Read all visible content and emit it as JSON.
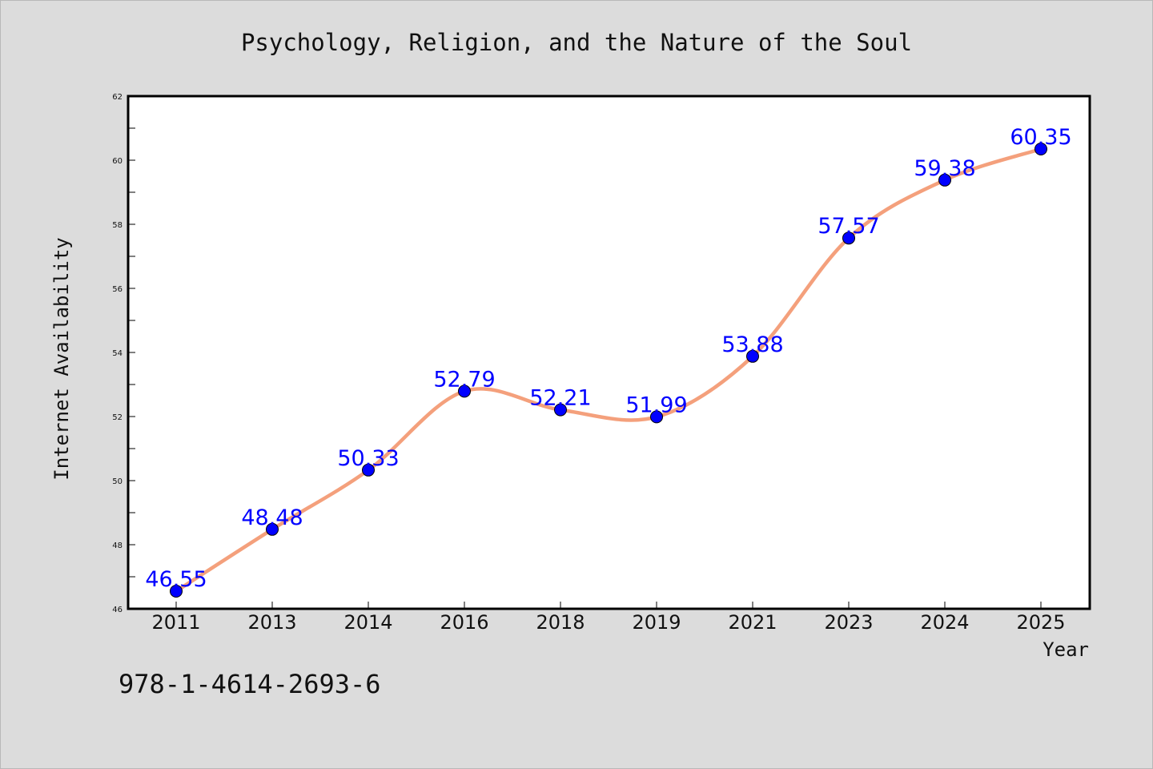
{
  "chart_data": {
    "type": "line",
    "title": "Psychology, Religion, and the Nature of the Soul",
    "xlabel": "Year",
    "ylabel": "Internet Availability",
    "categories": [
      "2011",
      "2013",
      "2014",
      "2016",
      "2018",
      "2019",
      "2021",
      "2023",
      "2024",
      "2025"
    ],
    "series": [
      {
        "values": [
          46.55,
          48.48,
          50.33,
          52.79,
          52.21,
          51.99,
          53.88,
          57.57,
          59.38,
          60.35
        ],
        "line_color": "#f4a07c",
        "marker_color": "#0000ff"
      }
    ],
    "data_labels": [
      "46.55",
      "48.48",
      "50.33",
      "52.79",
      "52.21",
      "51.99",
      "53.88",
      "57.57",
      "59.38",
      "60.35"
    ],
    "ylim": [
      46,
      62
    ],
    "yticks": [
      46,
      48,
      50,
      52,
      54,
      56,
      58,
      60,
      62
    ],
    "grid": false,
    "legend": "none"
  },
  "footnote": "978-1-4614-2693-6",
  "colors": {
    "background": "#dcdcdc",
    "plot_area": "#ffffff",
    "line": "#f4a07c",
    "marker": "#0000ff",
    "data_label": "#0000ff"
  }
}
